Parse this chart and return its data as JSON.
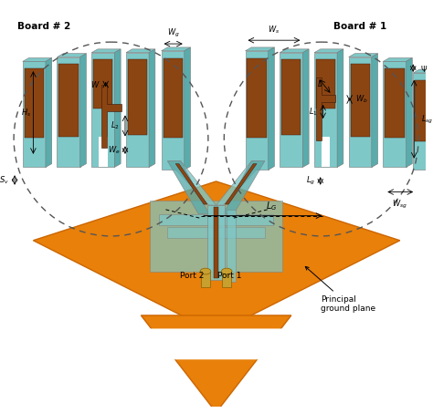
{
  "bg_color": "#ffffff",
  "orange": "#E8800A",
  "teal": "#7EC8C8",
  "teal_dark": "#5AABAB",
  "teal_mid": "#6BBABA",
  "brown": "#8B4513",
  "gold": "#C8A030",
  "board1_label": "Board # 1",
  "board2_label": "Board # 2",
  "port1_label": "Port 1",
  "port2_label": "Port 2",
  "ground_label": "Principal\nground plane",
  "LG_label": "L_G"
}
